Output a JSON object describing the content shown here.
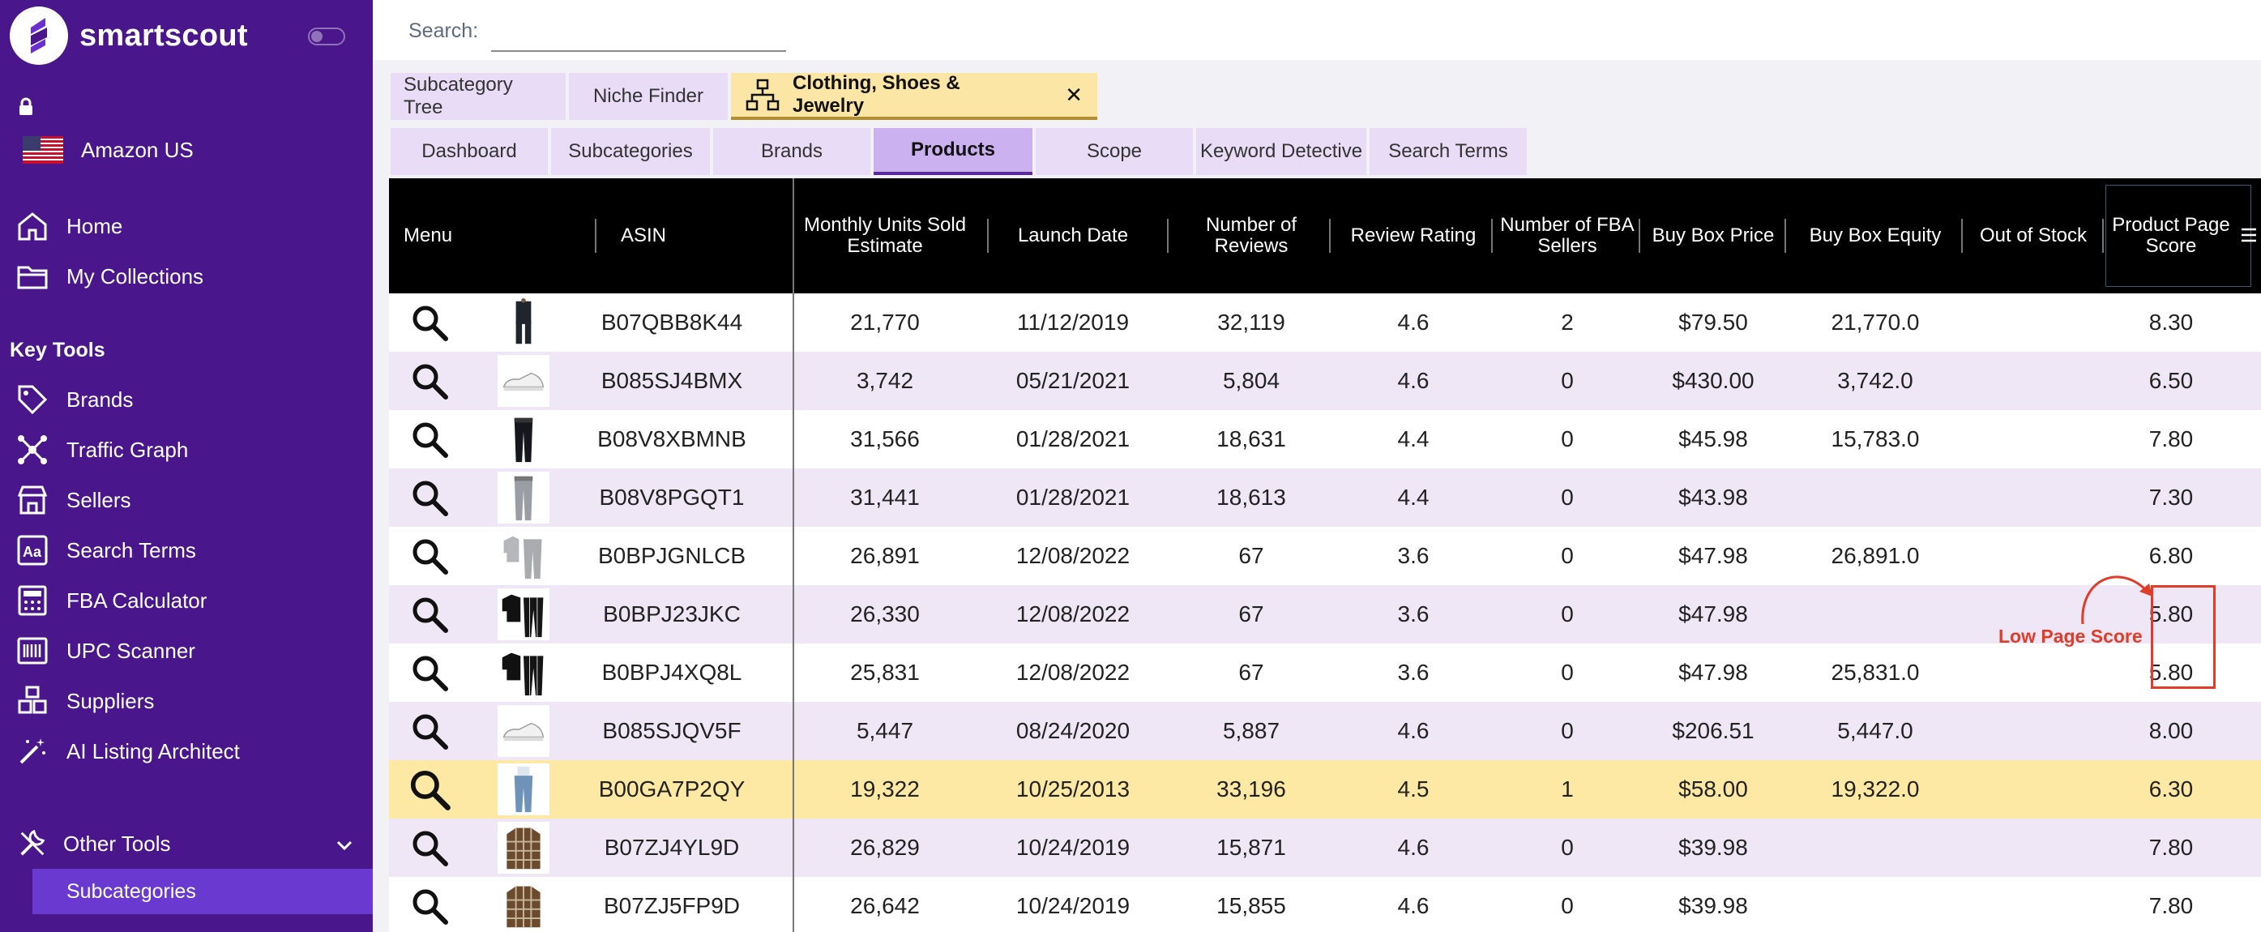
{
  "app": {
    "name": "smartscout",
    "marketplace": "Amazon US"
  },
  "sidebar": {
    "nav": [
      {
        "label": "Home",
        "icon": "home-icon"
      },
      {
        "label": "My Collections",
        "icon": "folder-icon"
      }
    ],
    "key_tools_title": "Key Tools",
    "key_tools": [
      {
        "label": "Brands",
        "icon": "tag-icon"
      },
      {
        "label": "Traffic Graph",
        "icon": "network-icon"
      },
      {
        "label": "Sellers",
        "icon": "store-icon"
      },
      {
        "label": "Search Terms",
        "icon": "text-search-icon"
      },
      {
        "label": "FBA Calculator",
        "icon": "calculator-icon"
      },
      {
        "label": "UPC Scanner",
        "icon": "barcode-icon"
      },
      {
        "label": "Suppliers",
        "icon": "boxes-icon"
      },
      {
        "label": "AI Listing Architect",
        "icon": "magic-wand-icon"
      }
    ],
    "other_tools": "Other Tools",
    "active_sub": "Subcategories"
  },
  "search": {
    "label": "Search:",
    "value": "",
    "placeholder": ""
  },
  "top_tabs": [
    "Subcategory Tree",
    "Niche Finder",
    "Clothing, Shoes & Jewelry"
  ],
  "close_symbol": "✕",
  "sub_tabs": [
    "Dashboard",
    "Subcategories",
    "Brands",
    "Products",
    "Scope",
    "Keyword Detective",
    "Search Terms"
  ],
  "table": {
    "columns": [
      "Menu",
      "ASIN",
      "Monthly Units Sold Estimate",
      "Launch Date",
      "Number of Reviews",
      "Review Rating",
      "Number of FBA Sellers",
      "Buy Box Price",
      "Buy Box Equity",
      "Out of Stock",
      "Product Page Score"
    ],
    "rows": [
      {
        "asin": "B07QBB8K44",
        "units": "21,770",
        "launch": "11/12/2019",
        "reviews": "32,119",
        "rating": "4.6",
        "fba": "2",
        "price": "$79.50",
        "equity": "21,770.0",
        "oos": "",
        "score": "8.30",
        "thumb": "suit"
      },
      {
        "asin": "B085SJ4BMX",
        "units": "3,742",
        "launch": "05/21/2021",
        "reviews": "5,804",
        "rating": "4.6",
        "fba": "0",
        "price": "$430.00",
        "equity": "3,742.0",
        "oos": "",
        "score": "6.50",
        "thumb": "shoe"
      },
      {
        "asin": "B08V8XBMNB",
        "units": "31,566",
        "launch": "01/28/2021",
        "reviews": "18,631",
        "rating": "4.4",
        "fba": "0",
        "price": "$45.98",
        "equity": "15,783.0",
        "oos": "",
        "score": "7.80",
        "thumb": "pants-black"
      },
      {
        "asin": "B08V8PGQT1",
        "units": "31,441",
        "launch": "01/28/2021",
        "reviews": "18,613",
        "rating": "4.4",
        "fba": "0",
        "price": "$43.98",
        "equity": "",
        "oos": "",
        "score": "7.30",
        "thumb": "pants-gray"
      },
      {
        "asin": "B0BPJGNLCB",
        "units": "26,891",
        "launch": "12/08/2022",
        "reviews": "67",
        "rating": "3.6",
        "fba": "0",
        "price": "$47.98",
        "equity": "26,891.0",
        "oos": "",
        "score": "6.80",
        "thumb": "tracksuit-gray"
      },
      {
        "asin": "B0BPJ23JKC",
        "units": "26,330",
        "launch": "12/08/2022",
        "reviews": "67",
        "rating": "3.6",
        "fba": "0",
        "price": "$47.98",
        "equity": "",
        "oos": "",
        "score": "5.80",
        "thumb": "tracksuit-black"
      },
      {
        "asin": "B0BPJ4XQ8L",
        "units": "25,831",
        "launch": "12/08/2022",
        "reviews": "67",
        "rating": "3.6",
        "fba": "0",
        "price": "$47.98",
        "equity": "25,831.0",
        "oos": "",
        "score": "5.80",
        "thumb": "tracksuit-black"
      },
      {
        "asin": "B085SJQV5F",
        "units": "5,447",
        "launch": "08/24/2020",
        "reviews": "5,887",
        "rating": "4.6",
        "fba": "0",
        "price": "$206.51",
        "equity": "5,447.0",
        "oos": "",
        "score": "8.00",
        "thumb": "shoe"
      },
      {
        "asin": "B00GA7P2QY",
        "units": "19,322",
        "launch": "10/25/2013",
        "reviews": "33,196",
        "rating": "4.5",
        "fba": "1",
        "price": "$58.00",
        "equity": "19,322.0",
        "oos": "",
        "score": "6.30",
        "thumb": "jeans"
      },
      {
        "asin": "B07ZJ4YL9D",
        "units": "26,829",
        "launch": "10/24/2019",
        "reviews": "15,871",
        "rating": "4.6",
        "fba": "0",
        "price": "$39.98",
        "equity": "",
        "oos": "",
        "score": "7.80",
        "thumb": "flannel"
      },
      {
        "asin": "B07ZJ5FP9D",
        "units": "26,642",
        "launch": "10/24/2019",
        "reviews": "15,855",
        "rating": "4.6",
        "fba": "0",
        "price": "$39.98",
        "equity": "",
        "oos": "",
        "score": "7.80",
        "thumb": "flannel"
      }
    ],
    "highlight_row": 8
  },
  "annotation": {
    "text": "Low Page Score",
    "color": "#e03c28"
  },
  "colors": {
    "sidebar_bg": "#4a168c",
    "accent": "#6a3ad0",
    "highlight": "#fde9a4",
    "stripe": "#efe7f6"
  }
}
